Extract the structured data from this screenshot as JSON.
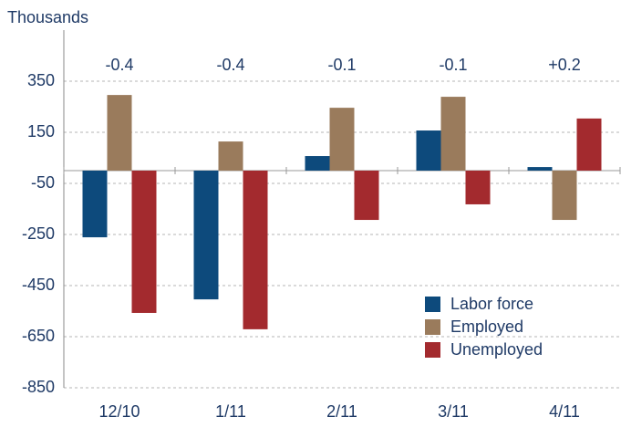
{
  "chart_data": {
    "type": "bar",
    "ylabel": "Thousands",
    "categories": [
      "12/10",
      "1/11",
      "2/11",
      "3/11",
      "4/11"
    ],
    "annotations": [
      "-0.4",
      "-0.4",
      "-0.1",
      "-0.1",
      "+0.2"
    ],
    "series": [
      {
        "name": "Labor force",
        "color": "#0d4a7c",
        "values": [
          -261,
          -504,
          57,
          157,
          14
        ]
      },
      {
        "name": "Employed",
        "color": "#9a7b5c",
        "values": [
          296,
          114,
          246,
          289,
          -193
        ]
      },
      {
        "name": "Unemployed",
        "color": "#a32a2e",
        "values": [
          -557,
          -621,
          -193,
          -132,
          204
        ]
      }
    ],
    "ylim": [
      -850,
      550
    ],
    "yticks": [
      350,
      150,
      -50,
      -250,
      -450,
      -650,
      -850
    ],
    "grid": true,
    "legend": "lower right"
  }
}
